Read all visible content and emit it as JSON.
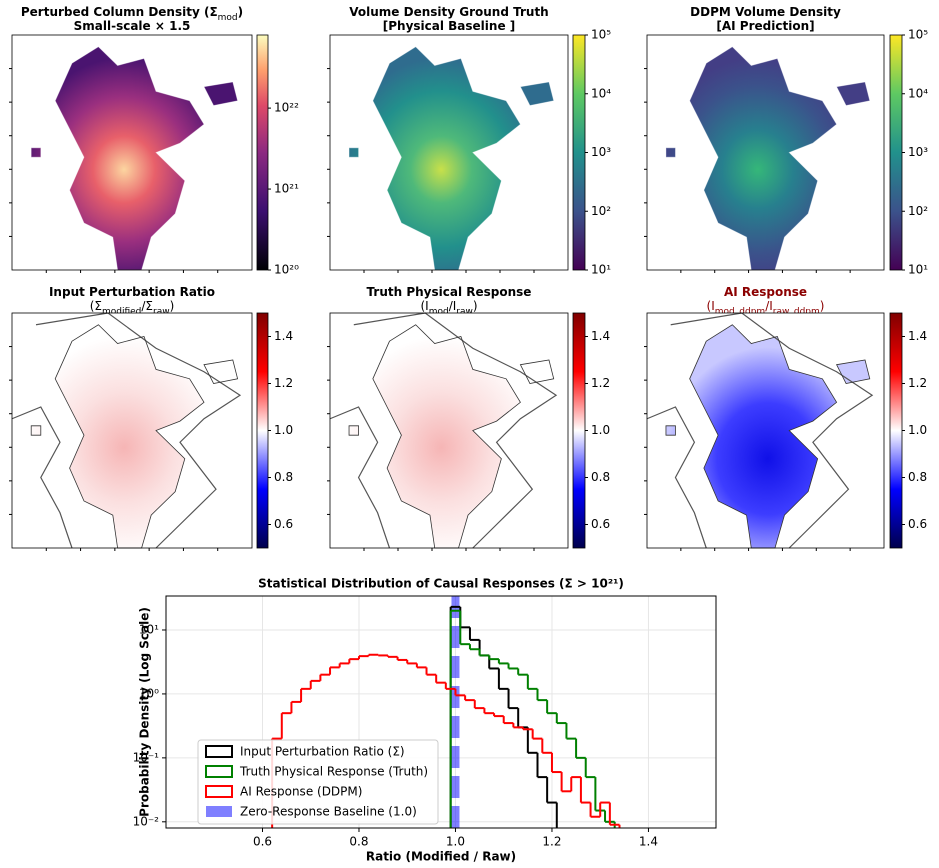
{
  "panels": [
    {
      "title": [
        "Perturbed Column Density (Σ",
        "mod",
        ")"
      ],
      "subtitle": [
        "Small-scale × 1.5"
      ],
      "style": "magma",
      "cbar": {
        "cmap": "magma",
        "log": true,
        "lim": [
          1e+20,
          8e+22
        ],
        "ticks": [
          {
            "value": 1e+20,
            "label": "10²⁰"
          },
          {
            "value": 1e+21,
            "label": "10²¹"
          },
          {
            "value": 1e+22,
            "label": "10²²"
          }
        ]
      }
    },
    {
      "title": [
        "Volume Density Ground Truth"
      ],
      "subtitle": [
        "[Physical Baseline ]"
      ],
      "style": "viridis",
      "cbar": {
        "cmap": "viridis",
        "log": true,
        "lim": [
          10,
          100000
        ],
        "ticks": [
          {
            "value": 10,
            "label": "10¹"
          },
          {
            "value": 100,
            "label": "10²"
          },
          {
            "value": 1000,
            "label": "10³"
          },
          {
            "value": 10000,
            "label": "10⁴"
          },
          {
            "value": 100000,
            "label": "10⁵"
          }
        ]
      }
    },
    {
      "title": [
        "DDPM Volume Density"
      ],
      "subtitle": [
        "[AI Prediction]"
      ],
      "style": "viridis-dim",
      "cbar": {
        "cmap": "viridis",
        "log": true,
        "lim": [
          10,
          100000
        ],
        "ticks": [
          {
            "value": 10,
            "label": "10¹"
          },
          {
            "value": 100,
            "label": "10²"
          },
          {
            "value": 1000,
            "label": "10³"
          },
          {
            "value": 10000,
            "label": "10⁴"
          },
          {
            "value": 100000,
            "label": "10⁵"
          }
        ]
      }
    },
    {
      "title": [
        "Input Perturbation Ratio"
      ],
      "subtitle": [
        "(Σ",
        "modified",
        "/Σ",
        "raw",
        ")"
      ],
      "style": "ratio-red",
      "cbar": {
        "cmap": "seismic",
        "log": false,
        "lim": [
          0.5,
          1.5
        ],
        "ticks": [
          0.6,
          0.8,
          {
            "value": 1,
            "label": "1.0"
          },
          1.2,
          1.4
        ]
      }
    },
    {
      "title": [
        "Truth Physical Response"
      ],
      "subtitle": [
        "(I",
        "mod",
        "/I",
        "raw",
        ")"
      ],
      "style": "ratio-red",
      "cbar": {
        "cmap": "seismic",
        "log": false,
        "lim": [
          0.5,
          1.5
        ],
        "ticks": [
          0.6,
          0.8,
          {
            "value": 1,
            "label": "1.0"
          },
          1.2,
          1.4
        ]
      }
    },
    {
      "title": [
        "AI Response"
      ],
      "subtitle": [
        "(I",
        "mod_ddpm",
        "/I",
        "raw_ddpm",
        ")"
      ],
      "title_color": "#8b0000",
      "style": "ratio-blue",
      "cbar": {
        "cmap": "seismic",
        "log": false,
        "lim": [
          0.5,
          1.5
        ],
        "ticks": [
          0.6,
          0.8,
          {
            "value": 1,
            "label": "1.0"
          },
          1.2,
          1.4
        ]
      }
    }
  ],
  "chart_data": {
    "type": "step-histogram",
    "title": "Statistical Distribution of Causal Responses (Σ > 10²¹)",
    "x_label": "Ratio (Modified / Raw)",
    "y_label": "Probability Density (Log Scale)",
    "xlim": [
      0.4,
      1.54
    ],
    "ylim": [
      0.008,
      34
    ],
    "log_y": true,
    "grid": true,
    "legend": "lower left",
    "xticks": [
      0.6,
      0.8,
      {
        "value": 1,
        "label": "1.0"
      },
      1.2,
      1.4
    ],
    "yticks": [
      {
        "value": 0.01,
        "label": "10⁻²"
      },
      {
        "value": 0.1,
        "label": "10⁻¹"
      },
      {
        "value": 1,
        "label": "10⁰"
      },
      {
        "value": 10,
        "label": "10¹"
      }
    ],
    "series": [
      {
        "name": "Input Perturbation Ratio (Σ)",
        "color": "#000000",
        "bins": [
          0.99,
          1.01,
          1.03,
          1.05,
          1.07,
          1.09,
          1.11,
          1.13,
          1.15,
          1.17,
          1.19,
          1.21
        ],
        "values": [
          23,
          11,
          7,
          4,
          2.5,
          1.2,
          0.6,
          0.3,
          0.12,
          0.05,
          0.02
        ]
      },
      {
        "name": "Truth Physical Response (Truth)",
        "color": "#008000",
        "bins": [
          0.99,
          1.01,
          1.03,
          1.05,
          1.07,
          1.09,
          1.11,
          1.13,
          1.15,
          1.17,
          1.19,
          1.21,
          1.23,
          1.25,
          1.27,
          1.29,
          1.31,
          1.33
        ],
        "values": [
          20,
          6,
          5,
          4,
          3.5,
          3,
          2.5,
          2,
          1.2,
          0.8,
          0.5,
          0.35,
          0.2,
          0.1,
          0.05,
          0.015,
          0.01
        ]
      },
      {
        "name": "AI Response (DDPM)",
        "color": "#ff0000",
        "bins": [
          0.62,
          0.64,
          0.66,
          0.68,
          0.7,
          0.72,
          0.74,
          0.76,
          0.78,
          0.8,
          0.82,
          0.84,
          0.86,
          0.88,
          0.9,
          0.92,
          0.94,
          0.96,
          0.98,
          1.0,
          1.02,
          1.04,
          1.06,
          1.08,
          1.1,
          1.12,
          1.14,
          1.16,
          1.18,
          1.2,
          1.22,
          1.24,
          1.26,
          1.28,
          1.3,
          1.32,
          1.34
        ],
        "values": [
          0.2,
          0.5,
          0.75,
          1.2,
          1.6,
          2.0,
          2.6,
          3.0,
          3.5,
          3.9,
          4.1,
          4.0,
          3.8,
          3.4,
          3.0,
          2.6,
          2.0,
          1.5,
          1.2,
          0.95,
          0.8,
          0.6,
          0.5,
          0.45,
          0.35,
          0.3,
          0.28,
          0.2,
          0.12,
          0.06,
          0.03,
          0.05,
          0.02,
          0.012,
          0.02,
          0.009
        ]
      }
    ],
    "vlines": [
      {
        "name": "Zero-Response Baseline (1.0)",
        "color": "#0000ff",
        "x": 1
      }
    ]
  }
}
